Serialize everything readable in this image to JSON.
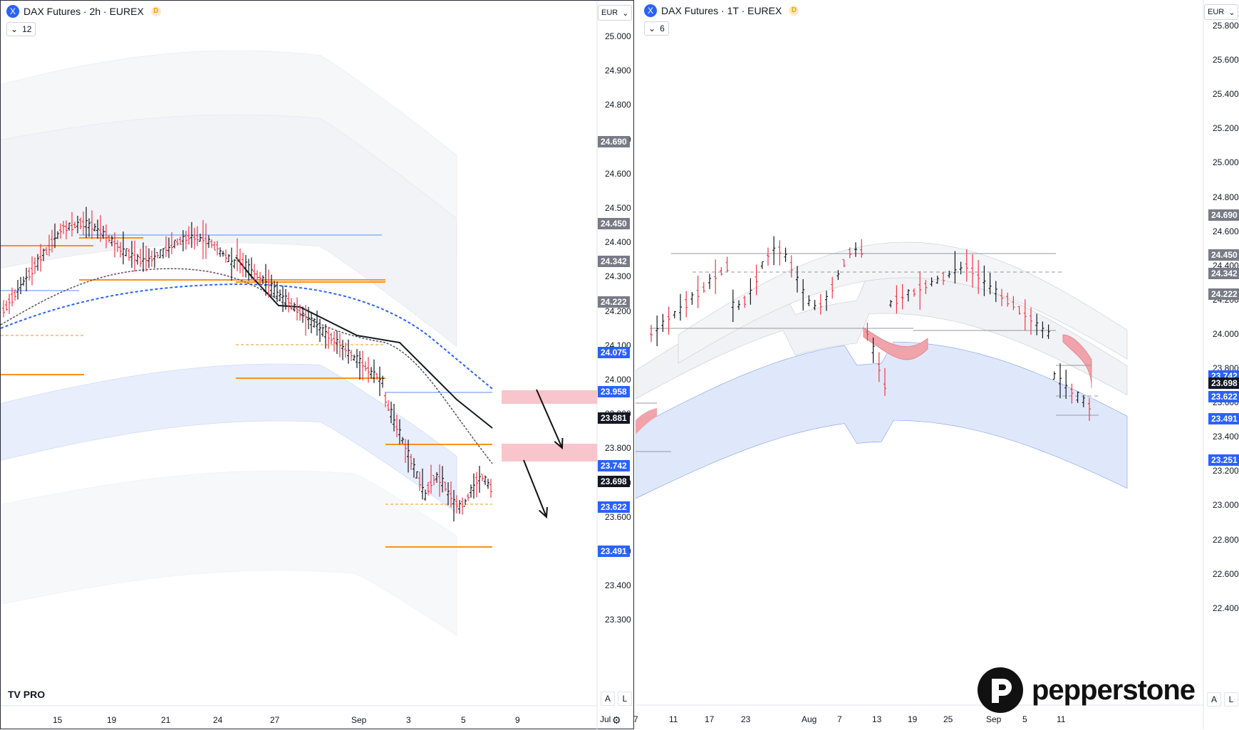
{
  "left": {
    "title": "DAX Futures · 2h · EUREX",
    "badge": "D",
    "indicators_count": "12",
    "currency": "EUR",
    "price_scale": [
      "25.000",
      "24.900",
      "24.800",
      "24.700",
      "24.600",
      "24.500",
      "24.400",
      "24.300",
      "24.200",
      "24.100",
      "24.000",
      "23.900",
      "23.800",
      "23.700",
      "23.600",
      "23.500",
      "23.400",
      "23.300"
    ],
    "tags": [
      {
        "text": "24.690",
        "color": "#787b86"
      },
      {
        "text": "24.450",
        "color": "#787b86"
      },
      {
        "text": "24.342",
        "color": "#787b86"
      },
      {
        "text": "24.222",
        "color": "#787b86"
      },
      {
        "text": "24.075",
        "color": "#2962ff"
      },
      {
        "text": "23.958",
        "color": "#2962ff"
      },
      {
        "text": "23.881",
        "color": "#131722"
      },
      {
        "text": "23.742",
        "color": "#2962ff"
      },
      {
        "text": "23.698",
        "color": "#131722"
      },
      {
        "text": "23.622",
        "color": "#2962ff"
      },
      {
        "text": "23.491",
        "color": "#2962ff"
      }
    ],
    "dates": [
      "15",
      "19",
      "21",
      "24",
      "27",
      "Sep",
      "3",
      "5",
      "9"
    ],
    "logo": "TV PRO",
    "scale_a": "A",
    "scale_l": "L"
  },
  "right": {
    "title": "DAX Futures · 1T · EUREX",
    "badge": "D",
    "indicators_count": "6",
    "currency": "EUR",
    "price_scale": [
      "25.800",
      "25.600",
      "25.400",
      "25.200",
      "25.000",
      "24.800",
      "24.600",
      "24.400",
      "24.200",
      "24.000",
      "23.800",
      "23.600",
      "23.400",
      "23.200",
      "23.000",
      "22.800",
      "22.600",
      "22.400"
    ],
    "tags": [
      {
        "text": "24.690",
        "color": "#787b86"
      },
      {
        "text": "24.450",
        "color": "#787b86"
      },
      {
        "text": "24.342",
        "color": "#787b86"
      },
      {
        "text": "24.222",
        "color": "#787b86"
      },
      {
        "text": "23.742",
        "color": "#2962ff"
      },
      {
        "text": "23.698",
        "color": "#131722"
      },
      {
        "text": "23.622",
        "color": "#2962ff"
      },
      {
        "text": "23.491",
        "color": "#2962ff"
      },
      {
        "text": "23.251",
        "color": "#2962ff"
      }
    ],
    "dates": [
      "Jul",
      "7",
      "11",
      "17",
      "23",
      "Aug",
      "7",
      "13",
      "19",
      "25",
      "Sep",
      "5",
      "11"
    ],
    "brand": "pepperstone",
    "scale_a": "A",
    "scale_l": "L"
  },
  "colors": {
    "bull": "#131722",
    "bear": "#f23645",
    "level": "#f7931a",
    "blue": "#2962ff",
    "zone": "#f7c5cb"
  }
}
